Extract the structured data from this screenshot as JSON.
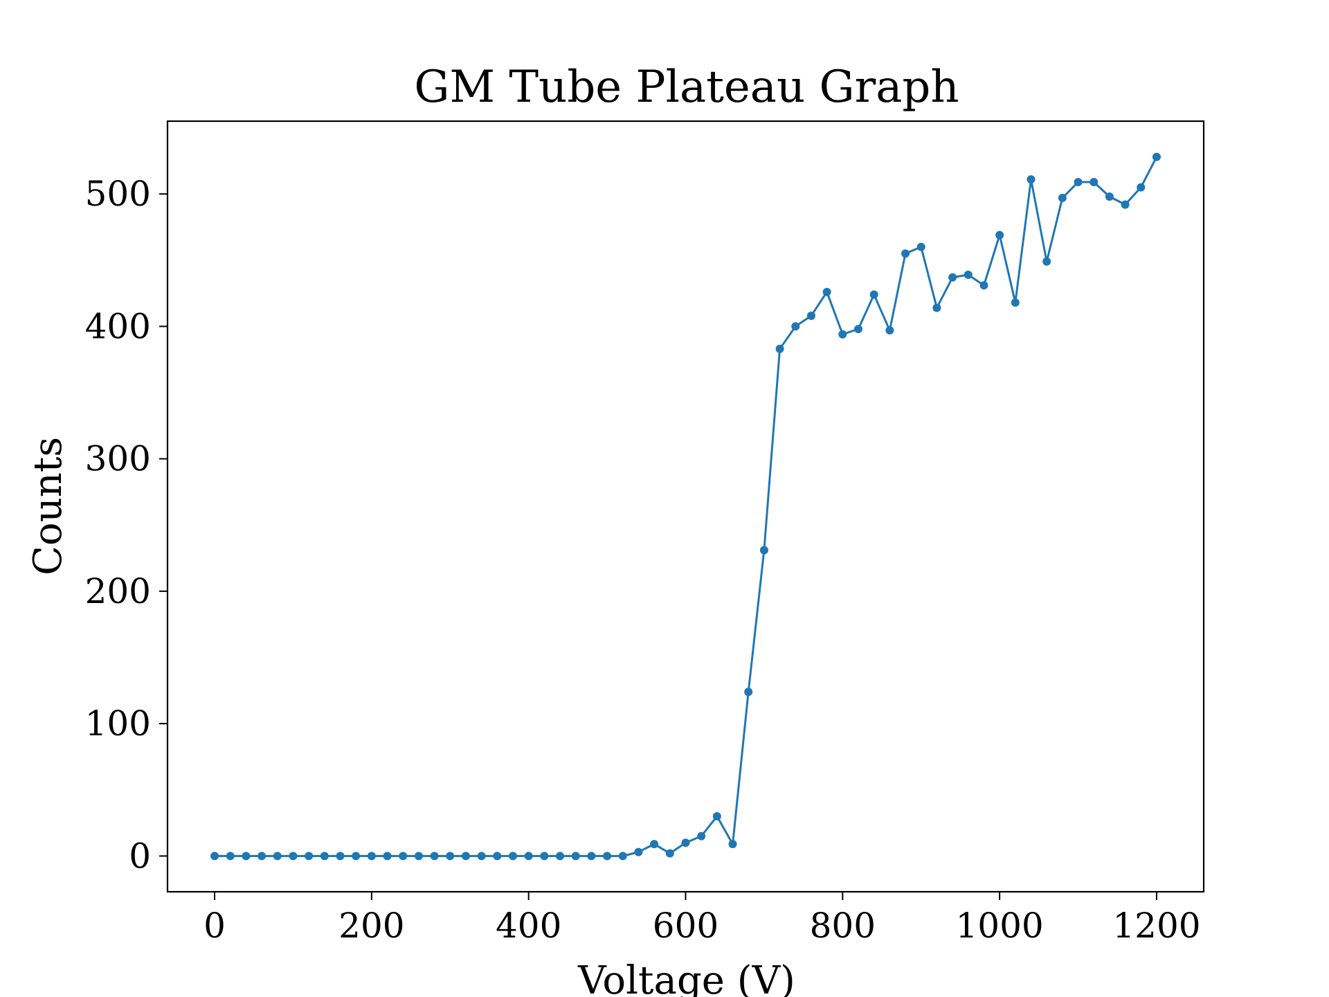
{
  "chart_data": {
    "type": "line",
    "title": "GM Tube Plateau Graph",
    "xlabel": "Voltage (V)",
    "ylabel": "Counts",
    "xlim": [
      -60,
      1260
    ],
    "ylim": [
      -27,
      555
    ],
    "xticks": [
      0,
      200,
      400,
      600,
      800,
      1000,
      1200
    ],
    "yticks": [
      0,
      100,
      200,
      300,
      400,
      500
    ],
    "grid": false,
    "legend": "none",
    "series": [
      {
        "color": "#1f77b4",
        "marker": "circle",
        "x": [
          0,
          20,
          40,
          60,
          80,
          100,
          120,
          140,
          160,
          180,
          200,
          220,
          240,
          260,
          280,
          300,
          320,
          340,
          360,
          380,
          400,
          420,
          440,
          460,
          480,
          500,
          520,
          540,
          560,
          580,
          600,
          620,
          640,
          660,
          680,
          700,
          720,
          740,
          760,
          780,
          800,
          820,
          840,
          860,
          880,
          900,
          920,
          940,
          960,
          980,
          1000,
          1020,
          1040,
          1060,
          1080,
          1100,
          1120,
          1140,
          1160,
          1180,
          1200
        ],
        "y": [
          0,
          0,
          0,
          0,
          0,
          0,
          0,
          0,
          0,
          0,
          0,
          0,
          0,
          0,
          0,
          0,
          0,
          0,
          0,
          0,
          0,
          0,
          0,
          0,
          0,
          0,
          0,
          3,
          9,
          2,
          10,
          15,
          30,
          9,
          124,
          231,
          383,
          400,
          408,
          426,
          394,
          398,
          424,
          397,
          455,
          460,
          414,
          437,
          439,
          431,
          469,
          418,
          511,
          449,
          497,
          509,
          509,
          498,
          492,
          505,
          528
        ]
      }
    ]
  }
}
